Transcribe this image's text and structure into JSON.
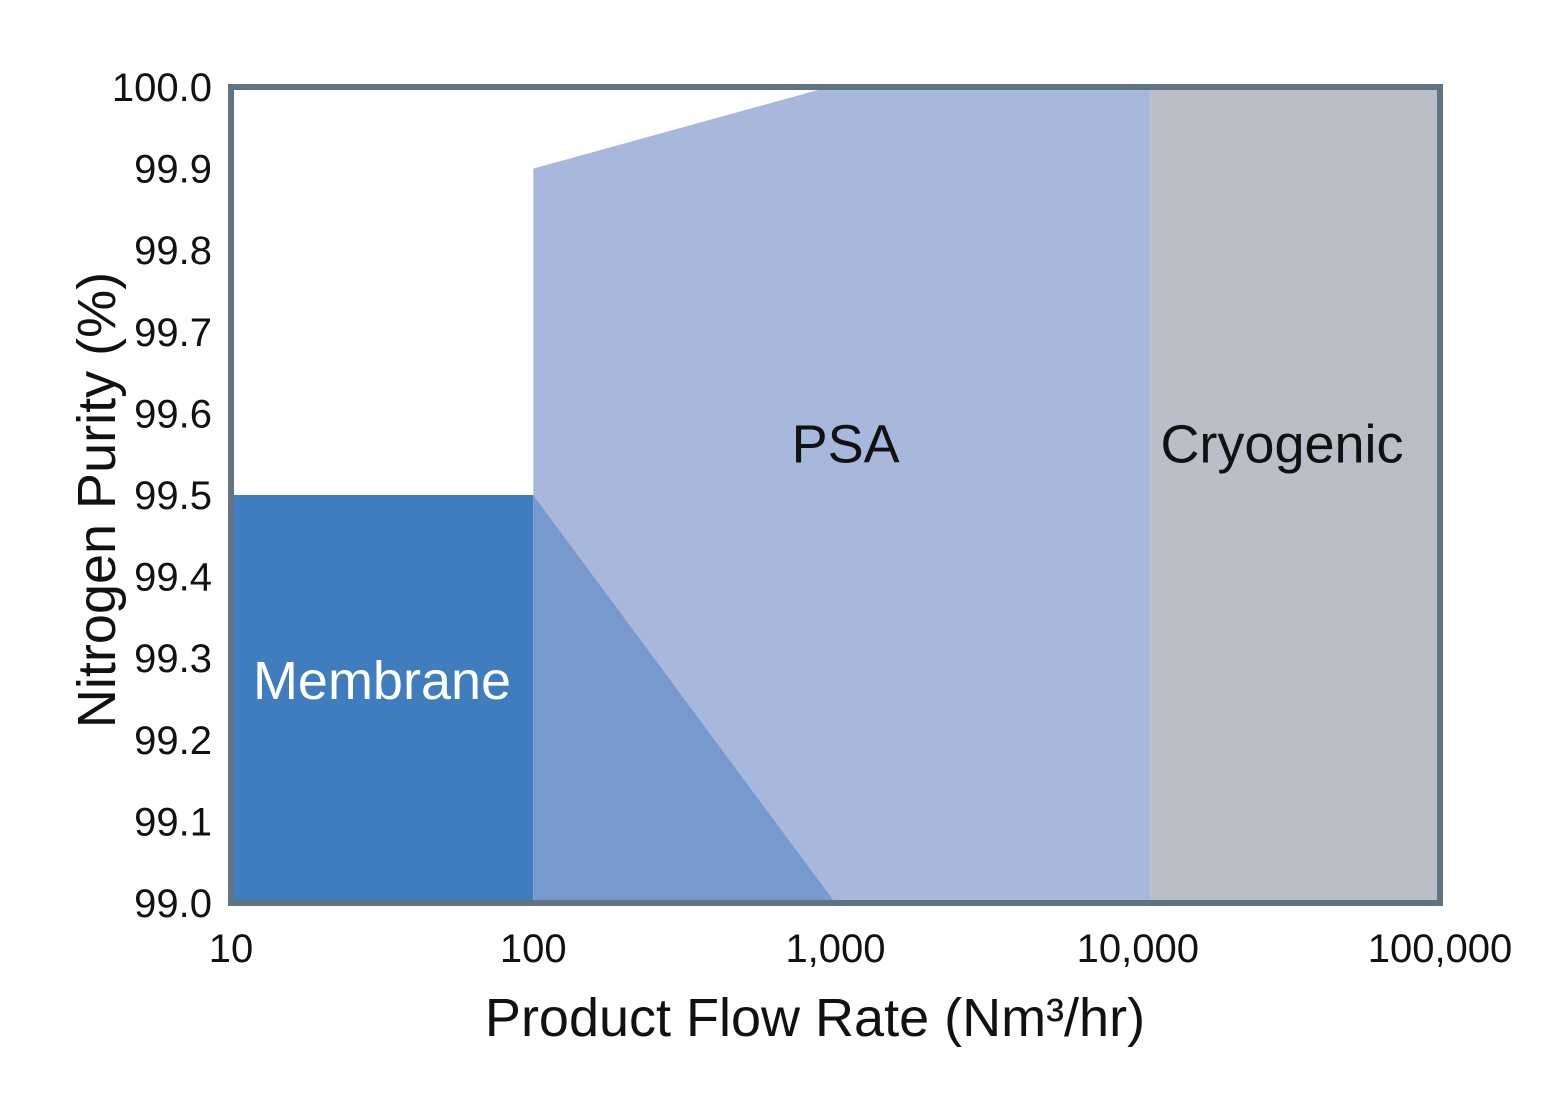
{
  "chart_data": {
    "type": "area",
    "title": "",
    "xlabel": "Product Flow Rate (Nm³/hr)",
    "ylabel": "Nitrogen Purity (%)",
    "x_scale": "log",
    "xlim": [
      10,
      100000
    ],
    "ylim": [
      99.0,
      100.0
    ],
    "x_ticks": [
      {
        "value": 10,
        "label": "10"
      },
      {
        "value": 100,
        "label": "100"
      },
      {
        "value": 1000,
        "label": "1,000"
      },
      {
        "value": 10000,
        "label": "10,000"
      },
      {
        "value": 100000,
        "label": "100,000"
      }
    ],
    "y_ticks": [
      {
        "value": 100.0,
        "label": "100.0"
      },
      {
        "value": 99.9,
        "label": "99.9"
      },
      {
        "value": 99.8,
        "label": "99.8"
      },
      {
        "value": 99.7,
        "label": "99.7"
      },
      {
        "value": 99.6,
        "label": "99.6"
      },
      {
        "value": 99.5,
        "label": "99.5"
      },
      {
        "value": 99.4,
        "label": "99.4"
      },
      {
        "value": 99.3,
        "label": "99.3"
      },
      {
        "value": 99.2,
        "label": "99.2"
      },
      {
        "value": 99.1,
        "label": "99.1"
      },
      {
        "value": 99.0,
        "label": "99.0"
      }
    ],
    "grid": false,
    "legend": "none",
    "regions": [
      {
        "name": "Cryogenic",
        "color": "#babec6",
        "label_color": "#111111",
        "label_at": [
          30000,
          99.54
        ],
        "points": [
          [
            11000,
            99.0
          ],
          [
            100000,
            99.0
          ],
          [
            100000,
            100.0
          ],
          [
            11000,
            100.0
          ]
        ]
      },
      {
        "name": "PSA",
        "color": "#a7b8dc",
        "label_color": "#111111",
        "label_at": [
          1080,
          99.54
        ],
        "points": [
          [
            100,
            99.5
          ],
          [
            100,
            99.9
          ],
          [
            950,
            100.0
          ],
          [
            11000,
            100.0
          ],
          [
            11000,
            99.0
          ],
          [
            1000,
            99.0
          ]
        ]
      },
      {
        "name": "Membrane",
        "color": "#3f7dbf",
        "label_color": "#ffffff",
        "label_at": [
          31.6,
          99.25
        ],
        "points": [
          [
            10,
            99.0
          ],
          [
            100,
            99.0
          ],
          [
            100,
            99.5
          ],
          [
            10,
            99.5
          ]
        ]
      }
    ],
    "overlap": {
      "name": "Membrane / PSA overlap",
      "color": "#7799cd",
      "points": [
        [
          100,
          99.0
        ],
        [
          1000,
          99.0
        ],
        [
          100,
          99.5
        ]
      ]
    },
    "frame_color": "#5f7382"
  }
}
